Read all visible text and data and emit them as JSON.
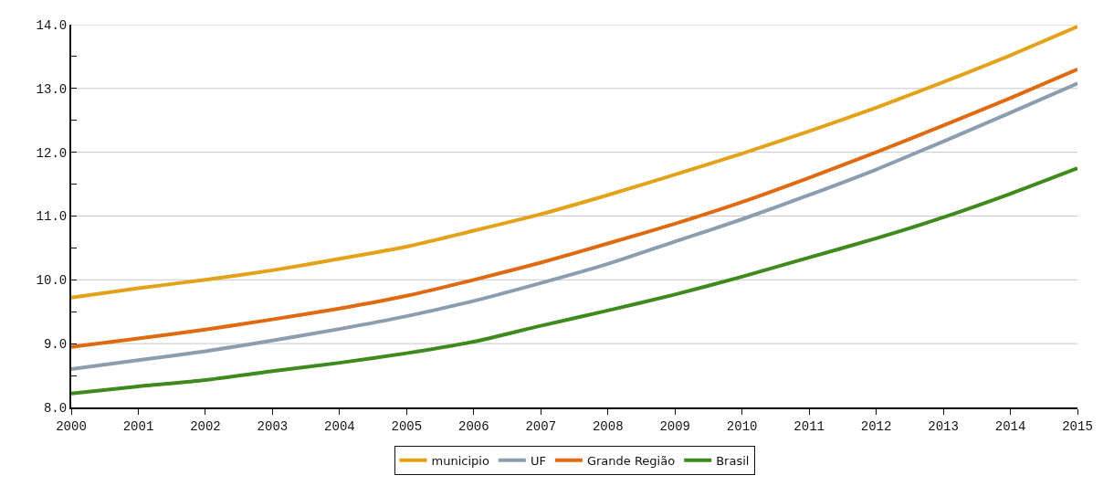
{
  "chart_data": {
    "type": "line",
    "x": [
      2000,
      2001,
      2002,
      2003,
      2004,
      2005,
      2006,
      2007,
      2008,
      2009,
      2010,
      2011,
      2012,
      2013,
      2014,
      2015
    ],
    "series": [
      {
        "name": "municipio",
        "color": "#e3a21a",
        "values": [
          9.72,
          9.87,
          10.0,
          10.15,
          10.33,
          10.52,
          10.77,
          11.03,
          11.33,
          11.65,
          11.98,
          12.33,
          12.7,
          13.1,
          13.52,
          13.97
        ]
      },
      {
        "name": "UF",
        "color": "#8c9db0",
        "values": [
          8.6,
          8.74,
          8.88,
          9.05,
          9.23,
          9.43,
          9.67,
          9.95,
          10.25,
          10.6,
          10.95,
          11.33,
          11.73,
          12.17,
          12.62,
          13.08
        ]
      },
      {
        "name": "Grande Região",
        "color": "#e06a12",
        "values": [
          8.95,
          9.08,
          9.22,
          9.38,
          9.55,
          9.75,
          10.0,
          10.27,
          10.57,
          10.88,
          11.22,
          11.6,
          12.0,
          12.42,
          12.85,
          13.3
        ]
      },
      {
        "name": "Brasil",
        "color": "#3f8a1c",
        "values": [
          8.22,
          8.33,
          8.43,
          8.57,
          8.7,
          8.85,
          9.03,
          9.28,
          9.52,
          9.77,
          10.05,
          10.35,
          10.65,
          10.98,
          11.35,
          11.75
        ]
      }
    ],
    "xlim": [
      2000,
      2015
    ],
    "xticks": [
      2000,
      2001,
      2002,
      2003,
      2004,
      2005,
      2006,
      2007,
      2008,
      2009,
      2010,
      2011,
      2012,
      2013,
      2014,
      2015
    ],
    "ylim": [
      8,
      14
    ],
    "yticks": [
      {
        "value": 8,
        "label": "8.0"
      },
      {
        "value": 8.5,
        "label": null
      },
      {
        "value": 9,
        "label": "9.0"
      },
      {
        "value": 9.5,
        "label": null
      },
      {
        "value": 10,
        "label": "10.0"
      },
      {
        "value": 10.5,
        "label": null
      },
      {
        "value": 11,
        "label": "11.0"
      },
      {
        "value": 11.5,
        "label": null
      },
      {
        "value": 12,
        "label": "12.0"
      },
      {
        "value": 12.5,
        "label": null
      },
      {
        "value": 13,
        "label": "13.0"
      },
      {
        "value": 13.5,
        "label": null
      },
      {
        "value": 14,
        "label": "14.0"
      }
    ],
    "grid": "y",
    "legend": "bottom",
    "marker": "none",
    "line_style": "solid"
  }
}
